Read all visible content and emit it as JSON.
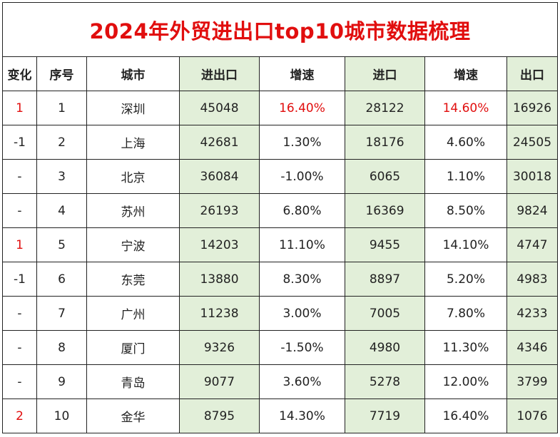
{
  "title": "2024年外贸进出口top10城市数据梳理",
  "headers": [
    "变化",
    "序号",
    "城市",
    "进出口",
    "增速",
    "进口",
    "增速",
    "出口"
  ],
  "rows": [
    {
      "change": "1",
      "change_red": true,
      "rank": "1",
      "city": "深圳",
      "total": "45048",
      "total_growth": "16.40%",
      "total_growth_red": true,
      "import": "28122",
      "import_growth": "14.60%",
      "import_growth_red": true,
      "export": "16926"
    },
    {
      "change": "-1",
      "change_red": false,
      "rank": "2",
      "city": "上海",
      "total": "42681",
      "total_growth": "1.30%",
      "total_growth_red": false,
      "import": "18176",
      "import_growth": "4.60%",
      "import_growth_red": false,
      "export": "24505"
    },
    {
      "change": "-",
      "change_red": false,
      "rank": "3",
      "city": "北京",
      "total": "36084",
      "total_growth": "-1.00%",
      "total_growth_red": false,
      "import": "6065",
      "import_growth": "1.10%",
      "import_growth_red": false,
      "export": "30018"
    },
    {
      "change": "-",
      "change_red": false,
      "rank": "4",
      "city": "苏州",
      "total": "26193",
      "total_growth": "6.80%",
      "total_growth_red": false,
      "import": "16369",
      "import_growth": "8.50%",
      "import_growth_red": false,
      "export": "9824"
    },
    {
      "change": "1",
      "change_red": true,
      "rank": "5",
      "city": "宁波",
      "total": "14203",
      "total_growth": "11.10%",
      "total_growth_red": false,
      "import": "9455",
      "import_growth": "14.10%",
      "import_growth_red": false,
      "export": "4747"
    },
    {
      "change": "-1",
      "change_red": false,
      "rank": "6",
      "city": "东莞",
      "total": "13880",
      "total_growth": "8.30%",
      "total_growth_red": false,
      "import": "8897",
      "import_growth": "5.20%",
      "import_growth_red": false,
      "export": "4983"
    },
    {
      "change": "-",
      "change_red": false,
      "rank": "7",
      "city": "广州",
      "total": "11238",
      "total_growth": "3.00%",
      "total_growth_red": false,
      "import": "7005",
      "import_growth": "7.80%",
      "import_growth_red": false,
      "export": "4233"
    },
    {
      "change": "-",
      "change_red": false,
      "rank": "8",
      "city": "厦门",
      "total": "9326",
      "total_growth": "-1.50%",
      "total_growth_red": false,
      "import": "4980",
      "import_growth": "11.30%",
      "import_growth_red": false,
      "export": "4346"
    },
    {
      "change": "-",
      "change_red": false,
      "rank": "9",
      "city": "青岛",
      "total": "9077",
      "total_growth": "3.60%",
      "total_growth_red": false,
      "import": "5278",
      "import_growth": "12.00%",
      "import_growth_red": false,
      "export": "3799"
    },
    {
      "change": "2",
      "change_red": true,
      "rank": "10",
      "city": "金华",
      "total": "8795",
      "total_growth": "14.30%",
      "total_growth_red": false,
      "import": "7719",
      "import_growth": "16.40%",
      "import_growth_red": false,
      "export": "1076"
    }
  ],
  "colors": {
    "accent_red": "#e10e0e",
    "highlight_green": "#e2efd9",
    "border": "#222222"
  }
}
